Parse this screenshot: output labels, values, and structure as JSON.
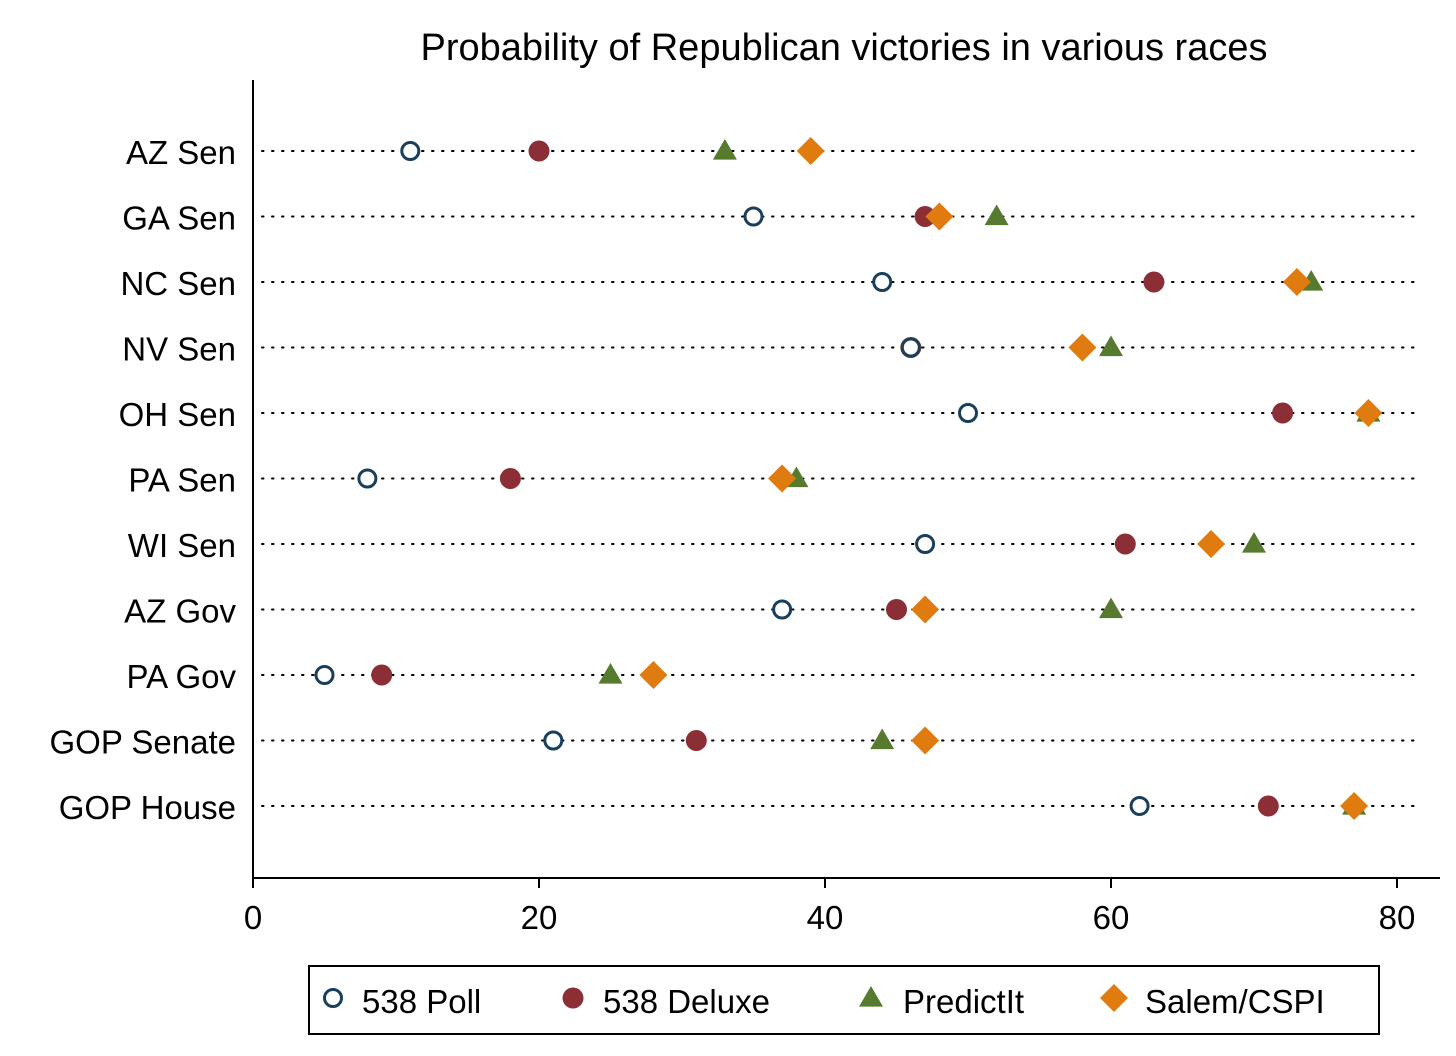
{
  "chart_data": {
    "type": "scatter",
    "title": "Probability of Republican victories in various races",
    "xlabel": "",
    "ylabel": "",
    "xlim": [
      0,
      82
    ],
    "xticks": [
      0,
      20,
      40,
      60,
      80
    ],
    "xtick_labels": [
      "0",
      "20",
      "40",
      "60",
      "80"
    ],
    "categories": [
      "AZ Sen",
      "GA Sen",
      "NC Sen",
      "NV Sen",
      "OH Sen",
      "PA Sen",
      "WI Sen",
      "AZ Gov",
      "PA Gov",
      "GOP Senate",
      "GOP House"
    ],
    "grid": "dotted horizontal lines per category",
    "legend_position": "bottom",
    "series": [
      {
        "name": "538 Poll",
        "marker": "hollow-circle",
        "color": "#1a3f5c",
        "values": [
          11,
          35,
          44,
          46,
          50,
          8,
          47,
          37,
          5,
          21,
          62
        ]
      },
      {
        "name": "538 Deluxe",
        "marker": "circle",
        "color": "#8b2e36",
        "values": [
          20,
          47,
          63,
          46,
          72,
          18,
          61,
          45,
          9,
          31,
          71
        ]
      },
      {
        "name": "PredictIt",
        "marker": "triangle",
        "color": "#567a2e",
        "values": [
          33,
          52,
          74,
          60,
          78,
          38,
          70,
          60,
          25,
          44,
          77
        ]
      },
      {
        "name": "Salem/CSPI",
        "marker": "diamond",
        "color": "#e07b10",
        "values": [
          39,
          48,
          73,
          58,
          78,
          37,
          67,
          47,
          28,
          47,
          77
        ]
      }
    ]
  }
}
